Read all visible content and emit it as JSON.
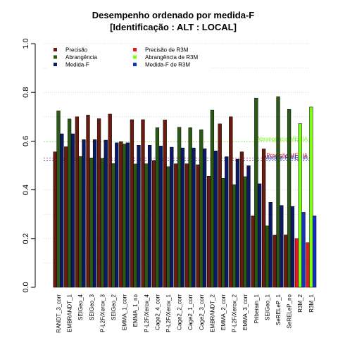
{
  "chart_data": {
    "type": "bar",
    "title": "Desempenho ordenado por medida-F",
    "subtitle": "[Identificação : ALT : LOCAL]",
    "xlabel": "",
    "ylabel": "",
    "ylim": [
      0,
      1
    ],
    "yticks": [
      "0.0",
      "0.2",
      "0.4",
      "0.6",
      "0.8",
      "1.0"
    ],
    "grid": "horizontal dotted",
    "legend_position": "top-left",
    "categories": [
      "RANDT_3_corr",
      "EMBRANDT_1",
      "SEIGeo_4",
      "SEIGeo_3",
      "P-L2F/Xerox_3",
      "SEIGeo_2",
      "EMMA_1_corr",
      "EMMA_1_no",
      "P-L2F/Xerox_4",
      "Cage2_4_corr",
      "P-L2F/Xerox_1",
      "Cage2_2_corr",
      "Cage2_1_corr",
      "Cage2_3_corr",
      "EMBRANDT_2",
      "EMMA_2_corr",
      "P-L2F/Xerox_2",
      "EMMA_3_corr",
      "Priberam_1",
      "SEIGeo_1",
      "SeRELeP_1",
      "SeRELeP_no",
      "R3M_2",
      "R3M_1"
    ],
    "r3m_flags": [
      false,
      false,
      false,
      false,
      false,
      false,
      false,
      false,
      false,
      false,
      false,
      false,
      false,
      false,
      false,
      false,
      false,
      false,
      false,
      false,
      false,
      false,
      true,
      true
    ],
    "series": [
      {
        "name": "Precisão",
        "r3m_name": "Precisão de R3M",
        "color": "#6b1a10",
        "r3m_color": "#e8191c",
        "values": [
          0.556,
          0.577,
          0.7,
          0.707,
          0.692,
          0.711,
          0.598,
          0.688,
          0.688,
          0.52,
          0.687,
          0.507,
          0.507,
          0.503,
          0.456,
          0.671,
          0.7,
          0.556,
          0.293,
          0.568,
          0.214,
          0.215,
          0.2,
          0.183
        ]
      },
      {
        "name": "Abrangência",
        "r3m_name": "Abrangência de R3M",
        "color": "#2a5a14",
        "r3m_color": "#7cfc1a",
        "values": [
          0.724,
          0.691,
          0.537,
          0.531,
          0.529,
          0.508,
          0.588,
          0.506,
          0.507,
          0.655,
          0.495,
          0.657,
          0.655,
          0.647,
          0.728,
          0.447,
          0.421,
          0.454,
          0.777,
          0.252,
          0.782,
          0.73,
          0.672,
          0.74
        ]
      },
      {
        "name": "Medida-F",
        "r3m_name": "Medida-F de R3M",
        "color": "#0a1a66",
        "r3m_color": "#1133cc",
        "values": [
          0.63,
          0.63,
          0.606,
          0.606,
          0.604,
          0.593,
          0.593,
          0.583,
          0.583,
          0.58,
          0.575,
          0.572,
          0.572,
          0.569,
          0.56,
          0.536,
          0.526,
          0.499,
          0.425,
          0.349,
          0.336,
          0.332,
          0.308,
          0.293
        ]
      }
    ],
    "reference_lines": [
      {
        "label": "Abrangência MEDIA",
        "value": 0.598,
        "color": "#7cfc1a"
      },
      {
        "label": "Precisão MEDIA",
        "value": 0.531,
        "color": "#e8191c"
      },
      {
        "label": "Medida-F MEDIA",
        "value": 0.522,
        "color": "#1133cc"
      }
    ]
  }
}
